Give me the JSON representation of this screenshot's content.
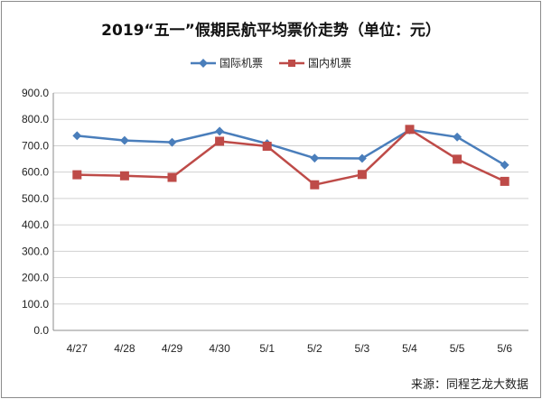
{
  "chart_data": {
    "type": "line",
    "title": "2019“五一”假期民航平均票价走势（单位：元）",
    "source": "来源：同程艺龙大数据",
    "categories": [
      "4/27",
      "4/28",
      "4/29",
      "4/30",
      "5/1",
      "5/2",
      "5/3",
      "5/4",
      "5/5",
      "5/6"
    ],
    "series": [
      {
        "name": "国际机票",
        "color": "#4a7ebb",
        "marker": "diamond",
        "values": [
          738,
          720,
          713,
          755,
          708,
          653,
          652,
          760,
          733,
          627
        ]
      },
      {
        "name": "国内机票",
        "color": "#be4b48",
        "marker": "square",
        "values": [
          590,
          586,
          580,
          717,
          698,
          552,
          591,
          762,
          649,
          565
        ]
      }
    ],
    "ylim": [
      0,
      900
    ],
    "yticks": [
      "0.0",
      "100.0",
      "200.0",
      "300.0",
      "400.0",
      "500.0",
      "600.0",
      "700.0",
      "800.0",
      "900.0"
    ],
    "grid": true,
    "legend": "top-center",
    "xlabel": "",
    "ylabel": ""
  }
}
